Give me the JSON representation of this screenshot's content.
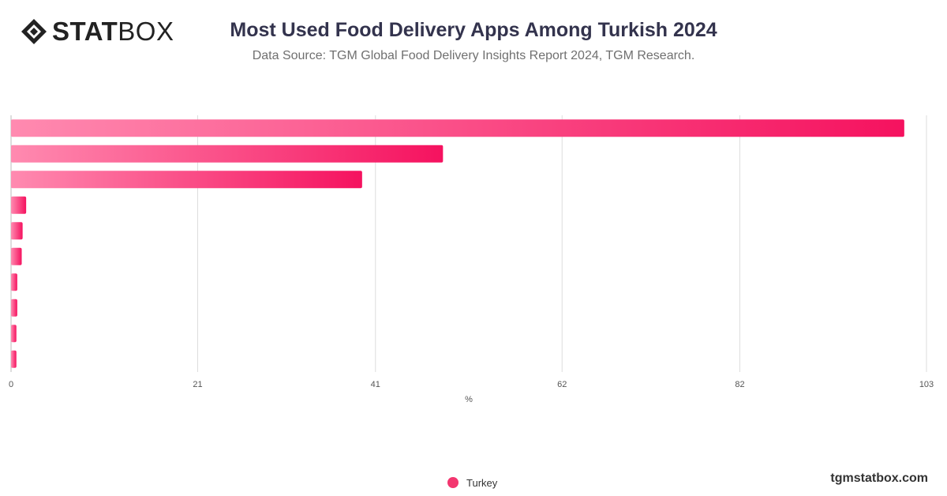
{
  "brand": {
    "logo_bold": "STAT",
    "logo_light": "BOX",
    "logo_icon": "statbox-diamond-icon",
    "website": "tgmstatbox.com"
  },
  "chart_data": {
    "type": "bar",
    "orientation": "horizontal",
    "title": "Most Used Food Delivery Apps Among Turkish 2024",
    "subtitle": "Data Source: TGM Global Food Delivery Insights Report 2024, TGM Research.",
    "xlabel": "%",
    "ylabel": "",
    "xlim": [
      0,
      103
    ],
    "x_ticks": [
      "0",
      "21",
      "41",
      "62",
      "82",
      "103"
    ],
    "grid": true,
    "legend_position": "bottom",
    "series": [
      {
        "name": "Turkey",
        "values": [
          100.5,
          48.6,
          39.5,
          1.7,
          1.3,
          1.2,
          0.7,
          0.7,
          0.6,
          0.6
        ]
      }
    ],
    "bar_color_start": "#ff8ab0",
    "bar_color_end": "#f5125f"
  }
}
